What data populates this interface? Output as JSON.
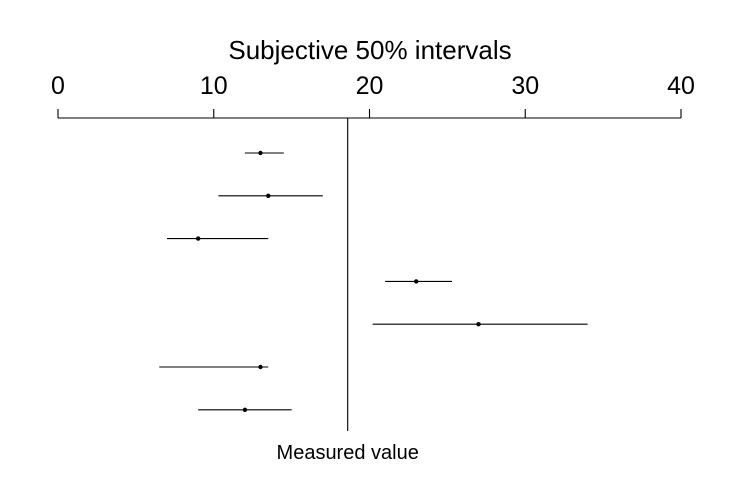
{
  "chart_data": {
    "type": "interval",
    "title": "Subjective 50% intervals",
    "xlim": [
      0,
      40
    ],
    "xticks": [
      0,
      10,
      20,
      30,
      40
    ],
    "tick_labels": [
      "0",
      "10",
      "20",
      "30",
      "40"
    ],
    "axis_position": "top",
    "reference": {
      "value": 18.6,
      "label": "Measured value"
    },
    "intervals": [
      {
        "low": 12.0,
        "point": 13.0,
        "high": 14.5
      },
      {
        "low": 10.3,
        "point": 13.5,
        "high": 17.0
      },
      {
        "low": 7.0,
        "point": 9.0,
        "high": 13.5
      },
      {
        "low": 21.0,
        "point": 23.0,
        "high": 25.3
      },
      {
        "low": 20.2,
        "point": 27.0,
        "high": 34.0
      },
      {
        "low": 6.5,
        "point": 13.0,
        "high": 13.5
      },
      {
        "low": 9.0,
        "point": 12.0,
        "high": 15.0
      }
    ],
    "grid": false
  }
}
